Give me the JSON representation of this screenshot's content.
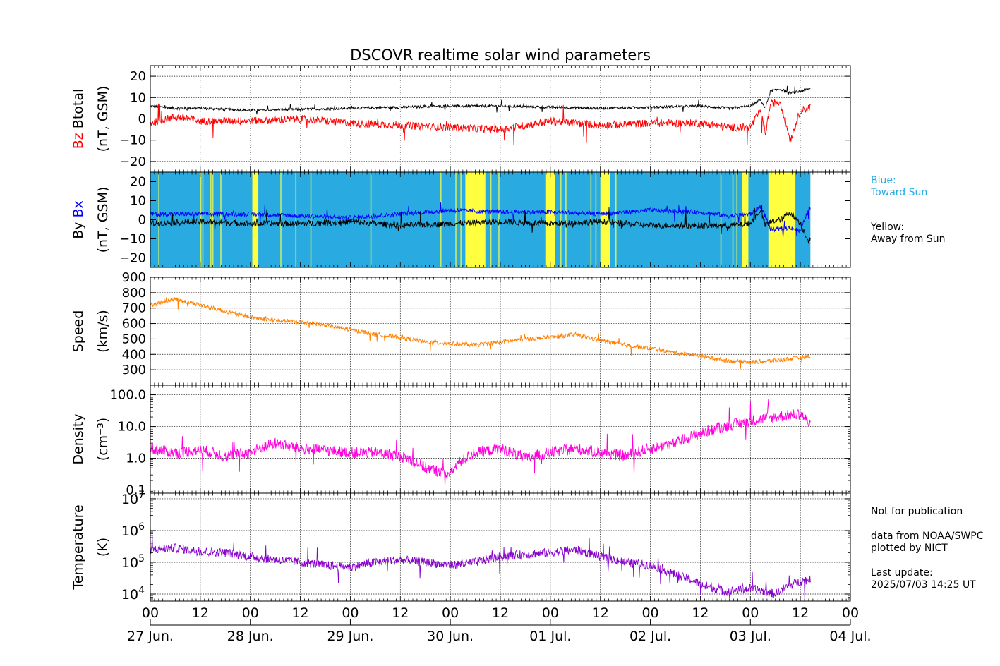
{
  "title": "DSCOVR realtime solar wind parameters",
  "x_ticks": [
    "00",
    "12",
    "00",
    "12",
    "00",
    "12",
    "00",
    "12",
    "00",
    "12",
    "00",
    "12",
    "00",
    "12",
    "00"
  ],
  "x_days": [
    "27 Jun.",
    "28 Jun.",
    "29 Jun.",
    "30 Jun.",
    "01 Jul.",
    "02 Jul.",
    "03 Jul.",
    "04 Jul."
  ],
  "legend": {
    "blue_line1": "Blue:",
    "blue_line2": "Toward Sun",
    "yellow_line1": "Yellow:",
    "yellow_line2": "Away from Sun"
  },
  "notes": {
    "line1": "Not for publication",
    "line2": "data from NOAA/SWPC",
    "line3": "plotted by NICT",
    "line4": "Last update:",
    "line5": "2025/07/03 14:25 UT"
  },
  "colors": {
    "bz": "#ff0000",
    "btotal": "#000000",
    "bx": "#0000ff",
    "by": "#000000",
    "toward_sun": "#29abe2",
    "away_sun": "#ffff40",
    "speed": "#ff8000",
    "density": "#ff00dd",
    "temperature": "#8800cc"
  },
  "chart_data": [
    {
      "type": "line",
      "panel": "magnetic-field-bz-btotal",
      "ylabel_parts": [
        "Bz",
        "Btotal"
      ],
      "yunit": "(nT, GSM)",
      "ylim": [
        -25,
        25
      ],
      "yticks": [
        20,
        10,
        0,
        -10,
        -20
      ],
      "grid": true,
      "series": [
        {
          "name": "Btotal",
          "x": [
            0,
            0.25,
            0.5,
            1,
            1.5,
            2,
            2.5,
            3,
            3.5,
            4,
            4.5,
            5,
            5.5,
            5.8,
            6.0,
            6.1,
            6.15,
            6.2,
            6.3,
            6.4,
            6.5,
            6.58,
            6.6
          ],
          "y": [
            6,
            5,
            5,
            4,
            4.5,
            5,
            5.5,
            6,
            6,
            5.5,
            5,
            5.5,
            6,
            5,
            6,
            9,
            5,
            13,
            14,
            12,
            13,
            14,
            14
          ]
        },
        {
          "name": "Bz",
          "x": [
            0,
            0.25,
            0.5,
            1,
            1.5,
            2,
            2.5,
            3,
            3.5,
            4,
            4.5,
            5,
            5.5,
            5.8,
            6.0,
            6.1,
            6.15,
            6.2,
            6.3,
            6.4,
            6.5,
            6.58,
            6.6
          ],
          "y": [
            -2,
            1,
            -1,
            -1,
            0,
            -2,
            -3,
            -4,
            -5,
            -1,
            -3,
            -2,
            -2,
            -4,
            -4,
            4,
            -7,
            7,
            8,
            -10,
            4,
            5,
            6
          ]
        }
      ]
    },
    {
      "type": "line",
      "panel": "magnetic-field-by-bx",
      "ylabel_parts": [
        "By",
        "Bx"
      ],
      "yunit": "(nT, GSM)",
      "ylim": [
        -25,
        25
      ],
      "yticks": [
        20,
        10,
        0,
        -10,
        -20
      ],
      "grid": false,
      "series": [
        {
          "name": "Bx",
          "x": [
            0,
            0.5,
            1,
            1.5,
            2,
            2.5,
            3,
            3.5,
            4,
            4.5,
            5,
            5.5,
            5.8,
            6.0,
            6.1,
            6.15,
            6.2,
            6.3,
            6.4,
            6.5,
            6.58,
            6.6
          ],
          "y": [
            3,
            3,
            3,
            2,
            1,
            3,
            5,
            4,
            4,
            3,
            5,
            4,
            2,
            3,
            7,
            2,
            -5,
            -5,
            -4,
            -6,
            5,
            6
          ]
        },
        {
          "name": "By",
          "x": [
            0,
            0.5,
            1,
            1.5,
            2,
            2.5,
            3,
            3.5,
            4,
            4.5,
            5,
            5.5,
            5.8,
            6.0,
            6.1,
            6.15,
            6.2,
            6.3,
            6.4,
            6.5,
            6.58,
            6.6
          ],
          "y": [
            -2,
            -1,
            -2,
            -2,
            -1,
            -3,
            -2,
            -1,
            -2,
            -1,
            -3,
            -3,
            -3,
            -2,
            5,
            -3,
            -1,
            0,
            4,
            -2,
            -11,
            -10
          ]
        }
      ],
      "sector_background": [
        {
          "from": 0,
          "to": 6.6,
          "sector": "toward"
        },
        {
          "from": 1.02,
          "to": 1.08,
          "sector": "away"
        },
        {
          "from": 3.15,
          "to": 3.35,
          "sector": "away"
        },
        {
          "from": 3.95,
          "to": 4.05,
          "sector": "away"
        },
        {
          "from": 4.5,
          "to": 4.6,
          "sector": "away"
        },
        {
          "from": 5.92,
          "to": 5.98,
          "sector": "away"
        },
        {
          "from": 6.18,
          "to": 6.45,
          "sector": "away"
        }
      ]
    },
    {
      "type": "line",
      "panel": "speed",
      "ylabel": "Speed",
      "yunit": "(km/s)",
      "ylim": [
        200,
        900
      ],
      "yticks": [
        900,
        800,
        700,
        600,
        500,
        400,
        300
      ],
      "grid": true,
      "series": [
        {
          "name": "Speed",
          "x": [
            0,
            0.25,
            0.5,
            0.75,
            1,
            1.25,
            1.5,
            1.75,
            2,
            2.25,
            2.5,
            2.75,
            3,
            3.25,
            3.5,
            3.75,
            4,
            4.25,
            4.5,
            4.75,
            5,
            5.25,
            5.5,
            5.75,
            6,
            6.25,
            6.5,
            6.6
          ],
          "y": [
            720,
            760,
            720,
            680,
            640,
            620,
            610,
            590,
            560,
            530,
            510,
            480,
            470,
            460,
            480,
            500,
            510,
            530,
            490,
            460,
            440,
            410,
            390,
            360,
            350,
            360,
            380,
            390
          ]
        }
      ]
    },
    {
      "type": "line",
      "panel": "density",
      "ylabel": "Density",
      "yunit": "(cm⁻³)",
      "yscale": "log",
      "ylim": [
        0.08,
        200
      ],
      "yticks": [
        "100.0",
        "10.0",
        "1.0",
        "0.1"
      ],
      "grid": true,
      "series": [
        {
          "name": "Density",
          "x": [
            0,
            0.25,
            0.5,
            0.75,
            1,
            1.25,
            1.5,
            1.75,
            2,
            2.25,
            2.5,
            2.75,
            3,
            3.25,
            3.5,
            3.75,
            4,
            4.25,
            4.5,
            4.75,
            5,
            5.25,
            5.5,
            5.75,
            6,
            6.25,
            6.5,
            6.6
          ],
          "y": [
            2,
            1.5,
            1.8,
            1.2,
            1.5,
            3,
            2,
            1.8,
            1.5,
            1.5,
            1.2,
            0.5,
            0.3,
            1.5,
            2,
            1,
            1.5,
            2,
            1.5,
            1.2,
            2,
            3,
            6,
            10,
            15,
            20,
            25,
            10
          ]
        }
      ]
    },
    {
      "type": "line",
      "panel": "temperature",
      "ylabel": "Temperature",
      "yunit": "(K)",
      "yscale": "log",
      "ylim": [
        6000,
        15000000
      ],
      "yticks": [
        10000,
        100000,
        1000000,
        10000000
      ],
      "grid": true,
      "series": [
        {
          "name": "Temperature",
          "x": [
            0,
            0.25,
            0.5,
            0.75,
            1,
            1.25,
            1.5,
            1.75,
            2,
            2.25,
            2.5,
            2.75,
            3,
            3.25,
            3.5,
            3.75,
            4,
            4.25,
            4.5,
            4.75,
            5,
            5.25,
            5.5,
            5.75,
            6,
            6.25,
            6.5,
            6.6
          ],
          "y": [
            250000,
            280000,
            220000,
            200000,
            150000,
            120000,
            100000,
            80000,
            70000,
            100000,
            120000,
            100000,
            80000,
            100000,
            150000,
            180000,
            200000,
            250000,
            150000,
            100000,
            80000,
            40000,
            20000,
            12000,
            15000,
            10000,
            25000,
            30000
          ]
        }
      ]
    }
  ]
}
